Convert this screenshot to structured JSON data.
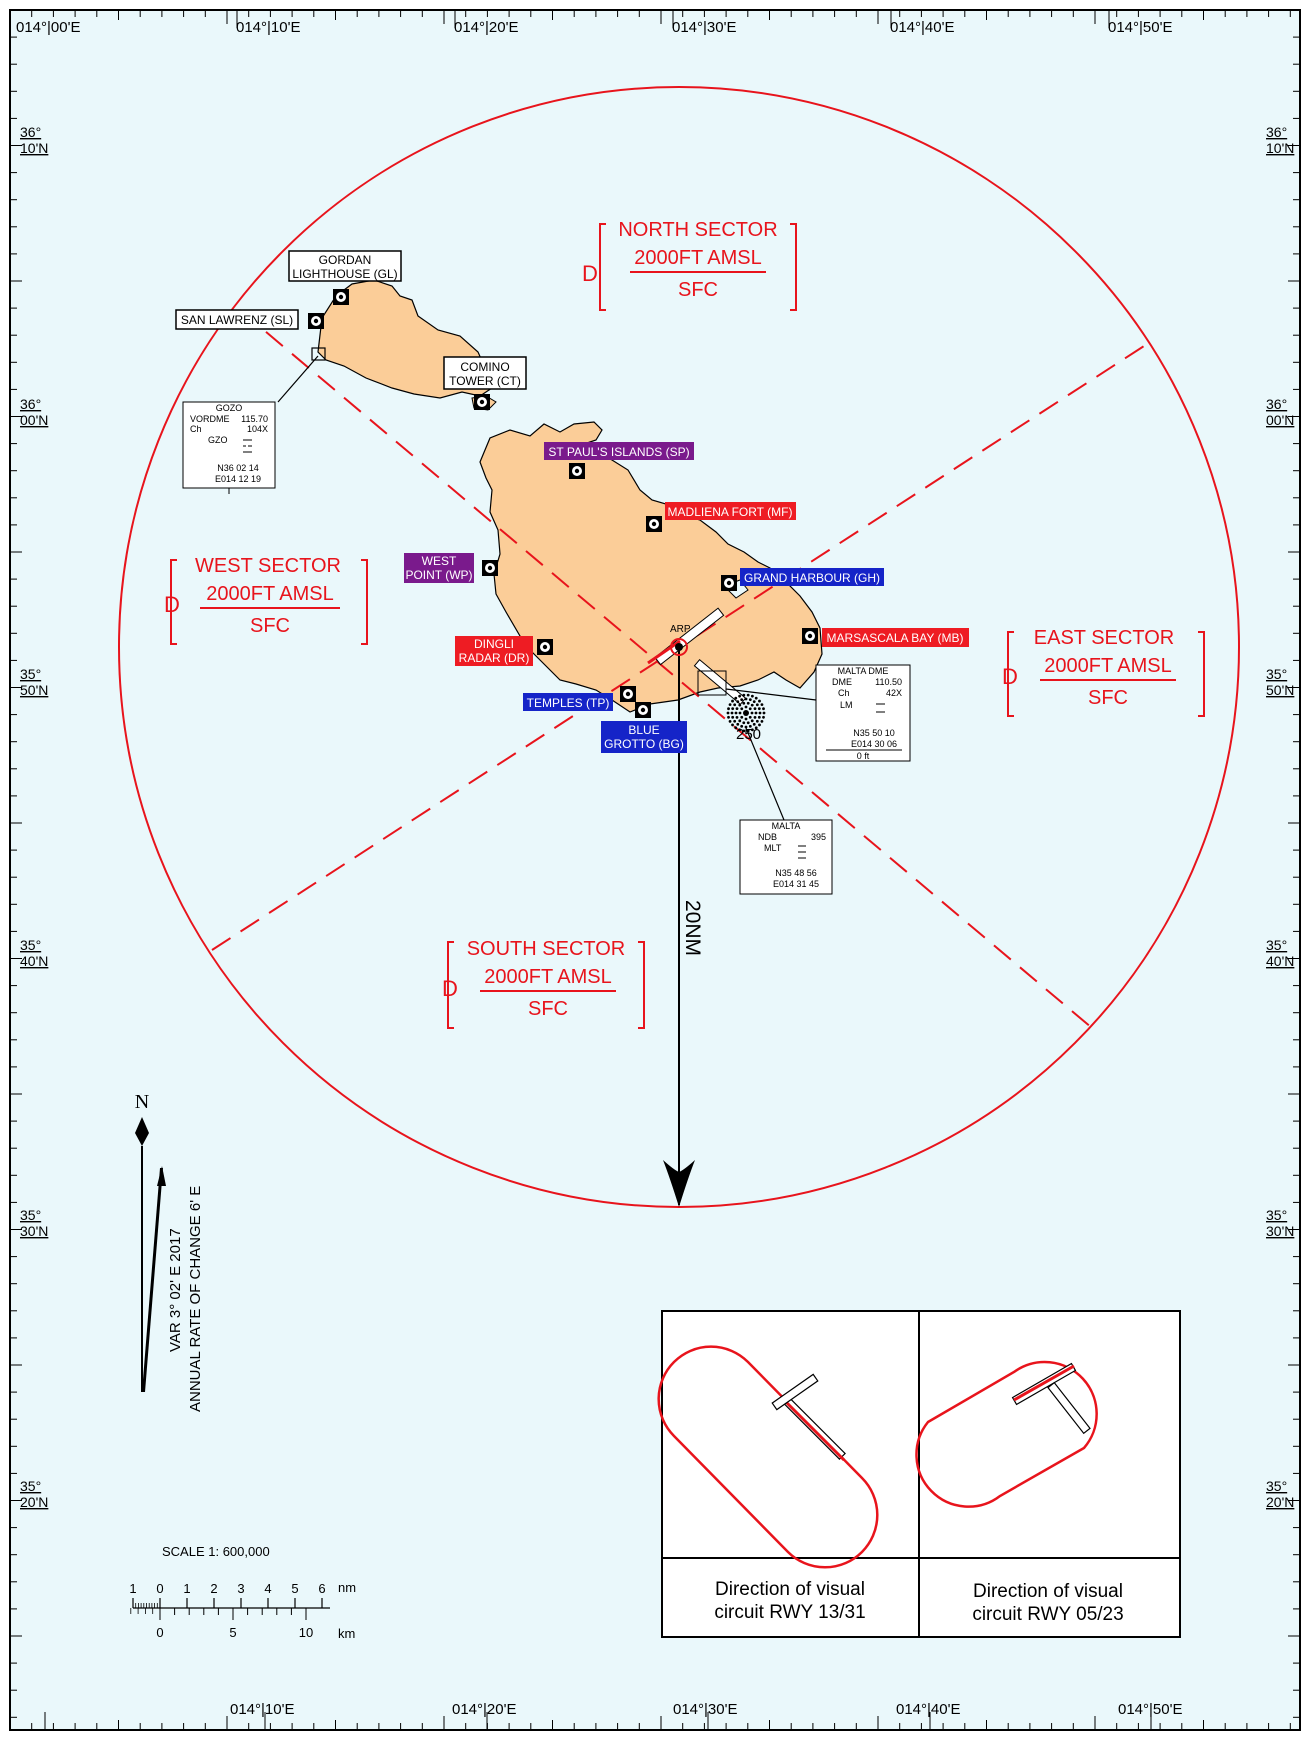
{
  "lon_labels_top": [
    "014°|00'E",
    "014°|10'E",
    "014°|20'E",
    "014°|30'E",
    "014°|40'E",
    "014°|50'E"
  ],
  "lon_labels_bottom": [
    "014°|10'E",
    "014°|20'E",
    "014°|30'E",
    "014°|40'E",
    "014°|50'E"
  ],
  "lat_labels": [
    {
      "deg": "36°",
      "min": "10'N"
    },
    {
      "deg": "36°",
      "min": "00'N"
    },
    {
      "deg": "35°",
      "min": "50'N"
    },
    {
      "deg": "35°",
      "min": "40'N"
    },
    {
      "deg": "35°",
      "min": "30'N"
    },
    {
      "deg": "35°",
      "min": "20'N"
    }
  ],
  "sectors": {
    "north": {
      "letter": "D",
      "name": "NORTH SECTOR",
      "upper": "2000FT AMSL",
      "lower": "SFC"
    },
    "west": {
      "letter": "D",
      "name": "WEST SECTOR",
      "upper": "2000FT AMSL",
      "lower": "SFC"
    },
    "east": {
      "letter": "D",
      "name": "EAST SECTOR",
      "upper": "2000FT AMSL",
      "lower": "SFC"
    },
    "south": {
      "letter": "D",
      "name": "SOUTH SECTOR",
      "upper": "2000FT AMSL",
      "lower": "SFC"
    }
  },
  "reporting_points": {
    "gordan": [
      "GORDAN",
      "LIGHTHOUSE (GL)"
    ],
    "san_lawrenz": "SAN LAWRENZ (SL)",
    "comino": [
      "COMINO",
      "TOWER (CT)"
    ],
    "st_pauls": "ST PAUL'S ISLANDS (SP)",
    "madliena": "MADLIENA FORT (MF)",
    "west_point": [
      "WEST",
      "POINT (WP)"
    ],
    "grand_harbour": "GRAND HARBOUR (GH)",
    "marsascala": "MARSASCALA BAY (MB)",
    "dingli": [
      "DINGLI",
      "RADAR (DR)"
    ],
    "temples": "TEMPLES (TP)",
    "blue_grotto": [
      "BLUE",
      "GROTTO (BG)"
    ]
  },
  "arp_label": "ARP",
  "elevation": "250",
  "radius_label": "20NM",
  "gozo_box": {
    "title": "GOZO",
    "rows": [
      [
        "VORDME",
        "115.70"
      ],
      [
        "Ch",
        "104X"
      ],
      [
        "GZO",
        ""
      ]
    ],
    "lat": "N36 02 14",
    "lon": "E014 12 19"
  },
  "malta_dme_box": {
    "title": "MALTA DME",
    "rows": [
      [
        "DME",
        "110.50"
      ],
      [
        "Ch",
        "42X"
      ],
      [
        "LM",
        ""
      ]
    ],
    "lat": "N35 50 10",
    "lon": "E014 30 06",
    "elev": "0 ft"
  },
  "malta_ndb_box": {
    "title": "MALTA",
    "rows": [
      [
        "NDB",
        "395"
      ],
      [
        "MLT",
        ""
      ]
    ],
    "lat": "N35 48 56",
    "lon": "E014 31 45"
  },
  "north_arrow": {
    "letter": "N",
    "var_line1": "VAR 3° 02' E 2017",
    "var_line2": "ANNUAL RATE OF CHANGE 6' E"
  },
  "scale": {
    "title": "SCALE  1: 600,000",
    "nm_ticks": [
      "1",
      "0",
      "1",
      "2",
      "3",
      "4",
      "5",
      "6"
    ],
    "nm_unit": "nm",
    "km_ticks": [
      "0",
      "5",
      "10"
    ],
    "km_unit": "km"
  },
  "circuits": {
    "left": [
      "Direction of visual",
      "circuit RWY 13/31"
    ],
    "right": [
      "Direction of visual",
      "circuit RWY 05/23"
    ]
  },
  "colors": {
    "sea": "#eaf8fb",
    "land": "#fbcd98",
    "airspace_red": "#e8141c",
    "blue_label": "#1524c8",
    "purple_label": "#7a1a8c",
    "red_label": "#ee1c23"
  }
}
